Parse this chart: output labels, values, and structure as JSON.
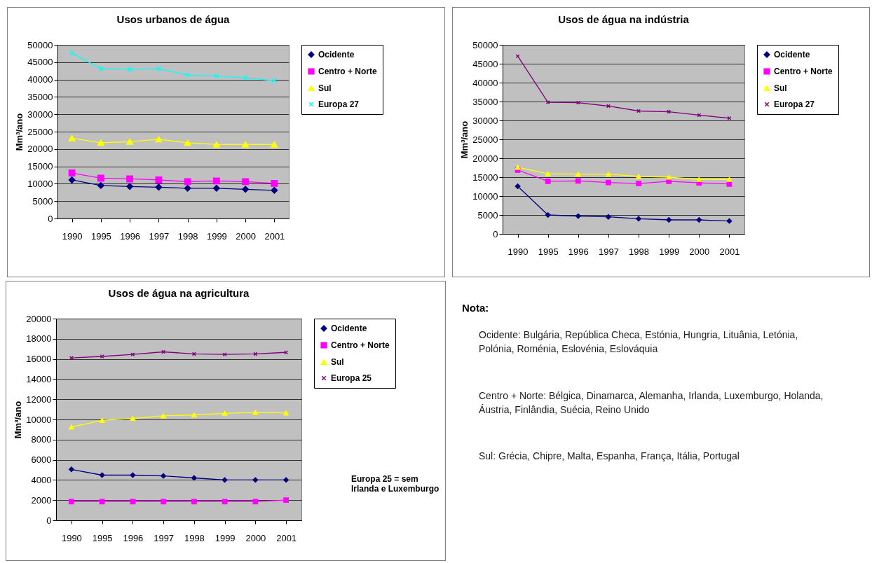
{
  "chart_data": [
    {
      "type": "line",
      "title": "Usos urbanos de água",
      "ylabel": "Mm³/ano",
      "categories": [
        "1990",
        "1995",
        "1996",
        "1997",
        "1998",
        "1999",
        "2000",
        "2001"
      ],
      "ylim": [
        0,
        50000
      ],
      "yticks": [
        0,
        5000,
        10000,
        15000,
        20000,
        25000,
        30000,
        35000,
        40000,
        45000,
        50000
      ],
      "grid": "y",
      "legend": "top right",
      "series": [
        {
          "name": "Ocidente",
          "color": "#000080",
          "marker": "diamond",
          "values": [
            11100,
            9500,
            9200,
            9000,
            8700,
            8700,
            8400,
            8100
          ]
        },
        {
          "name": "Centro + Norte",
          "color": "#ff00ff",
          "marker": "square",
          "values": [
            13100,
            11600,
            11400,
            11100,
            10600,
            10800,
            10600,
            10100
          ]
        },
        {
          "name": "Sul",
          "color": "#ffff00",
          "marker": "triangle",
          "values": [
            23100,
            21800,
            22100,
            22800,
            21800,
            21300,
            21300,
            21300
          ]
        },
        {
          "name": "Europa 27",
          "color": "#00ffff",
          "marker": "cross",
          "values": [
            47600,
            43100,
            42900,
            43100,
            41300,
            41000,
            40500,
            39700
          ]
        }
      ]
    },
    {
      "type": "line",
      "title": "Usos de água na indústria",
      "ylabel": "Mm³/ano",
      "categories": [
        "1990",
        "1995",
        "1996",
        "1997",
        "1998",
        "1999",
        "2000",
        "2001"
      ],
      "ylim": [
        0,
        50000
      ],
      "yticks": [
        0,
        5000,
        10000,
        15000,
        20000,
        25000,
        30000,
        35000,
        40000,
        45000,
        50000
      ],
      "grid": "y",
      "legend": "top right",
      "series": [
        {
          "name": "Ocidente",
          "color": "#000080",
          "marker": "diamond",
          "values": [
            12600,
            5000,
            4700,
            4500,
            4000,
            3700,
            3700,
            3400
          ]
        },
        {
          "name": "Centro + Norte",
          "color": "#ff00ff",
          "marker": "square",
          "values": [
            16900,
            13900,
            14000,
            13600,
            13300,
            13900,
            13500,
            13200
          ]
        },
        {
          "name": "Sul",
          "color": "#ffff00",
          "marker": "triangle",
          "values": [
            17600,
            15900,
            15800,
            15800,
            15200,
            15000,
            14400,
            14400
          ]
        },
        {
          "name": "Europa 27",
          "color": "#800080",
          "marker": "cross",
          "values": [
            47000,
            34800,
            34700,
            33800,
            32500,
            32300,
            31400,
            30600
          ]
        }
      ]
    },
    {
      "type": "line",
      "title": "Usos de água na agricultura",
      "ylabel": "Mm³/ano",
      "categories": [
        "1990",
        "1995",
        "1996",
        "1997",
        "1998",
        "1999",
        "2000",
        "2001"
      ],
      "ylim": [
        0,
        20000
      ],
      "yticks": [
        0,
        2000,
        4000,
        6000,
        8000,
        10000,
        12000,
        14000,
        16000,
        18000,
        20000
      ],
      "grid": "y",
      "legend": "top right",
      "annotations": [
        "Europa 25 = sem Irlanda e Luxemburgo"
      ],
      "series": [
        {
          "name": "Ocidente",
          "color": "#000080",
          "marker": "diamond",
          "values": [
            5050,
            4480,
            4480,
            4400,
            4200,
            4000,
            4000,
            4000
          ]
        },
        {
          "name": "Centro + Norte",
          "color": "#ff00ff",
          "marker": "square",
          "values": [
            1850,
            1850,
            1850,
            1850,
            1850,
            1850,
            1850,
            2000
          ]
        },
        {
          "name": "Sul",
          "color": "#ffff00",
          "marker": "triangle",
          "values": [
            9250,
            9900,
            10100,
            10350,
            10450,
            10600,
            10700,
            10650
          ]
        },
        {
          "name": "Europa 25",
          "color": "#800080",
          "marker": "cross",
          "values": [
            16100,
            16250,
            16450,
            16700,
            16500,
            16450,
            16500,
            16650
          ]
        }
      ]
    },
    {
      "type": "other",
      "title": "Nota:",
      "annotations": [
        "Ocidente: Bulgária, República Checa, Estónia, Hungria, Lituânia, Letónia, Polónia, Roménia, Eslovénia, Eslováquia",
        "Centro + Norte: Bélgica, Dinamarca, Alemanha, Irlanda, Luxemburgo, Holanda, Áustria, Finlândia, Suécia, Reino Unido",
        "Sul: Grécia, Chipre, Malta, Espanha, França, Itália, Portugal"
      ]
    }
  ]
}
